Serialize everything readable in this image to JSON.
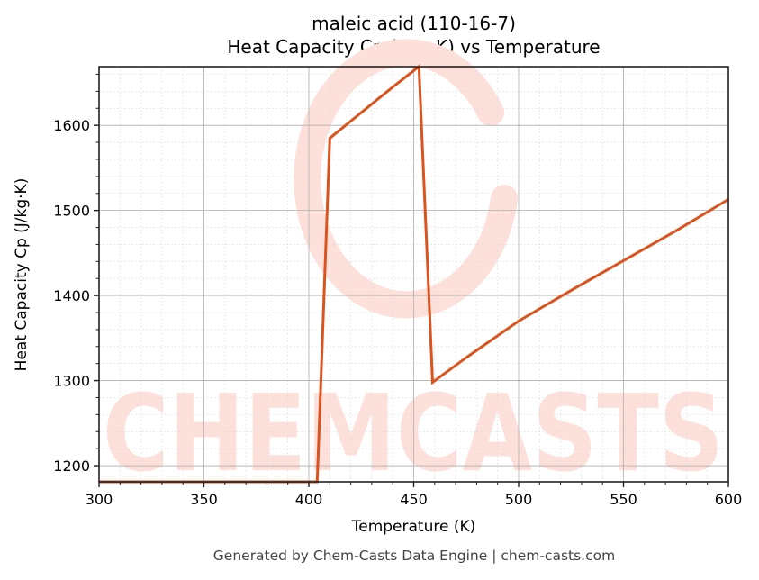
{
  "chart_data": {
    "type": "line",
    "title": "maleic acid (110-16-7)",
    "subtitle": "Heat Capacity Cp (J/kg·K) vs Temperature",
    "xlabel": "Temperature (K)",
    "ylabel": "Heat Capacity Cp (J/kg·K)",
    "xlim": [
      300,
      600
    ],
    "ylim": [
      1181,
      1669
    ],
    "x_ticks": [
      300,
      350,
      400,
      450,
      500,
      550,
      600
    ],
    "y_ticks": [
      1200,
      1300,
      1400,
      1500,
      1600
    ],
    "grid": true,
    "legend": null,
    "series": [
      {
        "name": "Cp",
        "color": "#d9541e",
        "x": [
          300,
          350,
          400,
          404,
          410,
          420,
          430,
          440,
          452.5,
          459,
          475,
          500,
          525,
          550,
          575,
          600
        ],
        "y": [
          1181,
          1181,
          1181,
          1181,
          1585,
          1605,
          1625,
          1645,
          1669,
          1298,
          1327,
          1370,
          1406,
          1441,
          1476,
          1513
        ]
      }
    ],
    "watermark": "CHEMCASTS"
  },
  "header": {
    "title_line1": "maleic acid (110-16-7)",
    "title_line2": "Heat Capacity Cp (J/kg·K) vs Temperature"
  },
  "axes": {
    "xlabel": "Temperature (K)",
    "ylabel": "Heat Capacity Cp (J/kg·K)",
    "x_tick_labels": [
      "300",
      "350",
      "400",
      "450",
      "500",
      "550",
      "600"
    ],
    "y_tick_labels": [
      "1200",
      "1300",
      "1400",
      "1500",
      "1600"
    ]
  },
  "footer": {
    "text": "Generated by Chem-Casts Data Engine | chem-casts.com"
  },
  "colors": {
    "line": "#d9541e",
    "watermark": "#fde0da",
    "grid_major": "#b0b0b0",
    "grid_minor": "#dddddd"
  }
}
